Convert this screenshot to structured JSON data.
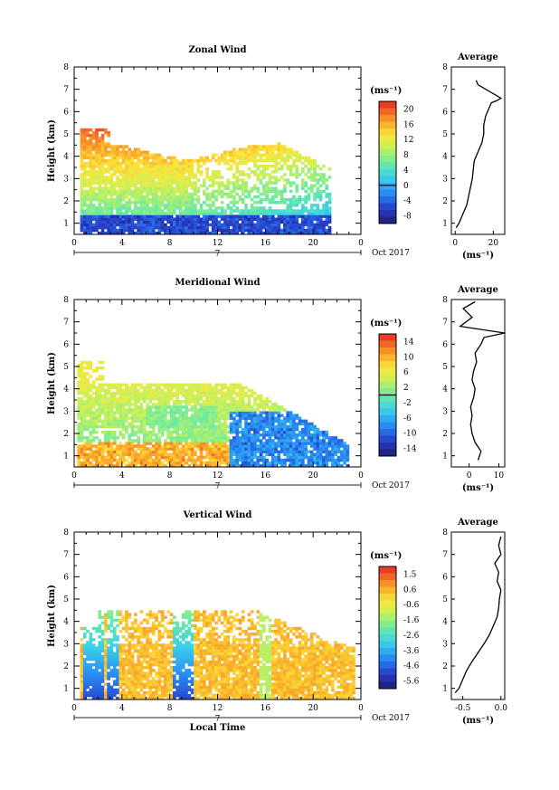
{
  "chart_data": [
    {
      "type": "heatmap",
      "title": "Zonal Wind",
      "xlabel": "",
      "ylabel": "Height (km)",
      "xlim": [
        0,
        24
      ],
      "ylim": [
        0.5,
        8
      ],
      "x_ticks": [
        "0",
        "4",
        "8",
        "12",
        "16",
        "20",
        "0"
      ],
      "y_ticks": [
        "1",
        "2",
        "3",
        "4",
        "5",
        "6",
        "7",
        "8"
      ],
      "date_label": "Oct 2017",
      "date_day": "7",
      "colorbar": {
        "unit": "(ms⁻¹)",
        "vmin": -10,
        "vmax": 22,
        "ticks": [
          "-8",
          "-4",
          "0",
          "4",
          "8",
          "12",
          "16",
          "20"
        ],
        "marker_value": 0
      },
      "profile": {
        "title": "Average",
        "xlabel": "(ms⁻¹)",
        "x_ticks": [
          "0",
          "20"
        ],
        "xlim": [
          -2,
          26
        ],
        "heights": [
          0.8,
          1.0,
          1.4,
          1.8,
          2.2,
          2.6,
          3.0,
          3.4,
          3.8,
          4.2,
          4.6,
          5.0,
          5.4,
          5.8,
          6.2,
          6.4,
          6.5,
          6.6,
          7.2,
          7.4
        ],
        "values": [
          0.5,
          2,
          4,
          6,
          7,
          8,
          9,
          9.5,
          10,
          12,
          14,
          15,
          15,
          16,
          18,
          19,
          22,
          24,
          12,
          11
        ]
      }
    },
    {
      "type": "heatmap",
      "title": "Meridional Wind",
      "xlabel": "",
      "ylabel": "Height (km)",
      "xlim": [
        0,
        24
      ],
      "ylim": [
        0.5,
        8
      ],
      "x_ticks": [
        "0",
        "4",
        "8",
        "12",
        "16",
        "20",
        "0"
      ],
      "y_ticks": [
        "1",
        "2",
        "3",
        "4",
        "5",
        "6",
        "7",
        "8"
      ],
      "date_label": "Oct 2017",
      "date_day": "7",
      "colorbar": {
        "unit": "(ms⁻¹)",
        "vmin": -16,
        "vmax": 16,
        "ticks": [
          "-14",
          "-10",
          "-6",
          "-2",
          "2",
          "6",
          "10",
          "14"
        ],
        "marker_value": 0
      },
      "profile": {
        "title": "Average",
        "xlabel": "(ms⁻¹)",
        "x_ticks": [
          "0",
          "10"
        ],
        "xlim": [
          -6,
          12
        ],
        "heights": [
          0.8,
          1.2,
          1.6,
          2.0,
          2.4,
          2.8,
          3.2,
          3.6,
          4.0,
          4.4,
          4.8,
          5.2,
          5.6,
          6.0,
          6.3,
          6.5,
          6.8,
          7.2,
          7.6,
          7.9
        ],
        "values": [
          3,
          4,
          2,
          1,
          0.5,
          1,
          0.5,
          1.5,
          2,
          1,
          1.5,
          2.5,
          2,
          4,
          5,
          12,
          -3,
          1,
          -2,
          2
        ]
      }
    },
    {
      "type": "heatmap",
      "title": "Vertical Wind",
      "xlabel": "Local Time",
      "ylabel": "Height (km)",
      "xlim": [
        0,
        24
      ],
      "ylim": [
        0.5,
        8
      ],
      "x_ticks": [
        "0",
        "4",
        "8",
        "12",
        "16",
        "20",
        "0"
      ],
      "y_ticks": [
        "1",
        "2",
        "3",
        "4",
        "5",
        "6",
        "7",
        "8"
      ],
      "date_label": "Oct 2017",
      "date_day": "7",
      "colorbar": {
        "unit": "(ms⁻¹)",
        "vmin": -6,
        "vmax": 2,
        "ticks": [
          "-5.6",
          "-4.6",
          "-3.6",
          "-2.6",
          "-1.6",
          "-0.6",
          "0.6",
          "1.5"
        ],
        "marker_value": null
      },
      "profile": {
        "title": "Average",
        "xlabel": "(ms⁻¹)",
        "x_ticks": [
          "-0.5",
          "0.0"
        ],
        "xlim": [
          -0.65,
          0.05
        ],
        "heights": [
          0.8,
          1.0,
          1.4,
          1.8,
          2.2,
          2.6,
          3.0,
          3.4,
          3.8,
          4.2,
          4.6,
          5.0,
          5.4,
          5.8,
          6.2,
          6.6,
          7.0,
          7.4,
          7.8
        ],
        "values": [
          -0.6,
          -0.55,
          -0.5,
          -0.45,
          -0.38,
          -0.3,
          -0.22,
          -0.15,
          -0.1,
          -0.05,
          -0.03,
          -0.02,
          0.0,
          -0.05,
          -0.03,
          -0.08,
          0.0,
          -0.03,
          0.0
        ]
      }
    }
  ]
}
